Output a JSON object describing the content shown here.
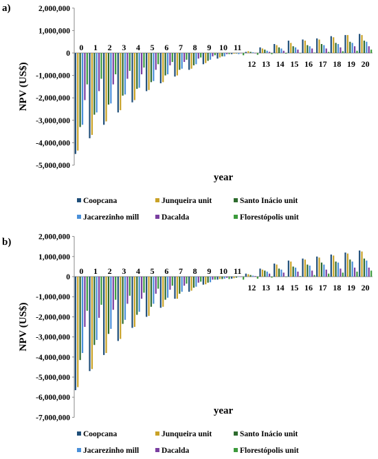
{
  "colors": {
    "Coopcana": "#1f4e79",
    "Junqueira unit": "#c9a227",
    "Santo Inácio unit": "#2e6b2e",
    "Jacarezinho mill": "#4a90d9",
    "Dacalda": "#7a3fa0",
    "Florestópolis unit": "#3c9a3c"
  },
  "chart_data": [
    {
      "panel_label": "a)",
      "type": "bar",
      "xlabel": "year",
      "ylabel": "NPV (US$)",
      "ylim": [
        -5000000,
        2000000
      ],
      "yticks": [
        2000000,
        1000000,
        0,
        -1000000,
        -2000000,
        -3000000,
        -4000000,
        -5000000
      ],
      "ytick_labels": [
        "2,000,000",
        "1,000,000",
        "0",
        "-1,000,000",
        "-2,000,000",
        "-3,000,000",
        "-4,000,000",
        "-5,000,000"
      ],
      "categories": [
        "0",
        "1",
        "2",
        "3",
        "4",
        "5",
        "6",
        "7",
        "8",
        "9",
        "10",
        "11",
        "12",
        "13",
        "14",
        "15",
        "16",
        "17",
        "18",
        "19",
        "20"
      ],
      "legend": [
        "Coopcana",
        "Junqueira unit",
        "Santo Inácio unit",
        "Jacarezinho mill",
        "Dacalda",
        "Florestópolis unit"
      ],
      "series": [
        {
          "name": "Coopcana",
          "values": [
            -4500000,
            -3800000,
            -3200000,
            -2650000,
            -2200000,
            -1700000,
            -1350000,
            -1050000,
            -750000,
            -500000,
            -250000,
            -50000,
            50000,
            250000,
            400000,
            550000,
            600000,
            650000,
            750000,
            800000,
            850000
          ]
        },
        {
          "name": "Junqueira unit",
          "values": [
            -4350000,
            -3650000,
            -3050000,
            -2550000,
            -2100000,
            -1650000,
            -1300000,
            -1000000,
            -700000,
            -450000,
            -200000,
            -30000,
            80000,
            200000,
            350000,
            450000,
            550000,
            600000,
            700000,
            800000,
            800000
          ]
        },
        {
          "name": "Santo Inácio unit",
          "values": [
            -3300000,
            -2750000,
            -2300000,
            -1900000,
            -1600000,
            -1300000,
            -1000000,
            -750000,
            -550000,
            -350000,
            -150000,
            -20000,
            50000,
            150000,
            250000,
            300000,
            350000,
            400000,
            450000,
            500000,
            550000
          ]
        },
        {
          "name": "Jacarezinho mill",
          "values": [
            -3200000,
            -2650000,
            -2250000,
            -1850000,
            -1550000,
            -1250000,
            -950000,
            -700000,
            -500000,
            -300000,
            -150000,
            -50000,
            30000,
            100000,
            200000,
            250000,
            300000,
            350000,
            400000,
            450000,
            500000
          ]
        },
        {
          "name": "Dacalda",
          "values": [
            -2100000,
            -1700000,
            -1400000,
            -1150000,
            -950000,
            -750000,
            -550000,
            -400000,
            -250000,
            -150000,
            -50000,
            0,
            0,
            50000,
            100000,
            150000,
            200000,
            200000,
            250000,
            300000,
            300000
          ]
        },
        {
          "name": "Florestópolis unit",
          "values": [
            -1400000,
            -1150000,
            -950000,
            -800000,
            -650000,
            -500000,
            -400000,
            -300000,
            -200000,
            -100000,
            -50000,
            -100000,
            -80000,
            -50000,
            -30000,
            0,
            20000,
            50000,
            80000,
            100000,
            150000
          ]
        }
      ]
    },
    {
      "panel_label": "b)",
      "type": "bar",
      "xlabel": "year",
      "ylabel": "NPV (US$)",
      "ylim": [
        -7000000,
        2000000
      ],
      "yticks": [
        2000000,
        1000000,
        0,
        -1000000,
        -2000000,
        -3000000,
        -4000000,
        -5000000,
        -6000000,
        -7000000
      ],
      "ytick_labels": [
        "2,000,000",
        "1,000,000",
        "0",
        "-1,000,000",
        "-2,000,000",
        "-3,000,000",
        "-4,000,000",
        "-5,000,000",
        "-6,000,000",
        "-7,000,000"
      ],
      "categories": [
        "0",
        "1",
        "2",
        "3",
        "4",
        "5",
        "6",
        "7",
        "8",
        "9",
        "10",
        "11",
        "12",
        "13",
        "14",
        "15",
        "16",
        "17",
        "18",
        "19",
        "20"
      ],
      "legend": [
        "Coopcana",
        "Junqueira unit",
        "Santo Inácio unit",
        "Jacarezinho mill",
        "Dacalda",
        "Florestópolis unit"
      ],
      "series": [
        {
          "name": "Coopcana",
          "values": [
            -5650000,
            -4700000,
            -3900000,
            -3200000,
            -2550000,
            -2000000,
            -1550000,
            -1100000,
            -750000,
            -400000,
            -150000,
            -100000,
            150000,
            400000,
            650000,
            800000,
            900000,
            1000000,
            1100000,
            1200000,
            1300000
          ]
        },
        {
          "name": "Junqueira unit",
          "values": [
            -5500000,
            -4600000,
            -3800000,
            -3100000,
            -2500000,
            -1950000,
            -1500000,
            -1100000,
            -700000,
            -380000,
            -120000,
            -80000,
            120000,
            350000,
            600000,
            750000,
            850000,
            950000,
            1050000,
            1150000,
            1250000
          ]
        },
        {
          "name": "Santo Inácio unit",
          "values": [
            -4150000,
            -3400000,
            -2850000,
            -2350000,
            -1900000,
            -1500000,
            -1150000,
            -850000,
            -550000,
            -300000,
            -120000,
            -50000,
            80000,
            300000,
            400000,
            500000,
            600000,
            700000,
            750000,
            850000,
            900000
          ]
        },
        {
          "name": "Jacarezinho mill",
          "values": [
            -3800000,
            -3150000,
            -2600000,
            -2150000,
            -1750000,
            -1350000,
            -1050000,
            -750000,
            -500000,
            -280000,
            -100000,
            -20000,
            50000,
            250000,
            350000,
            450000,
            550000,
            600000,
            700000,
            750000,
            800000
          ]
        },
        {
          "name": "Dacalda",
          "values": [
            -2500000,
            -2050000,
            -1650000,
            -1350000,
            -1100000,
            -850000,
            -650000,
            -450000,
            -300000,
            -150000,
            -60000,
            0,
            30000,
            150000,
            200000,
            250000,
            300000,
            350000,
            400000,
            450000,
            450000
          ]
        },
        {
          "name": "Florestópolis unit",
          "values": [
            -1700000,
            -1400000,
            -1150000,
            -950000,
            -800000,
            -600000,
            -450000,
            -350000,
            -250000,
            -150000,
            -120000,
            -150000,
            -100000,
            -50000,
            -20000,
            30000,
            80000,
            150000,
            200000,
            250000,
            300000
          ]
        }
      ]
    }
  ]
}
